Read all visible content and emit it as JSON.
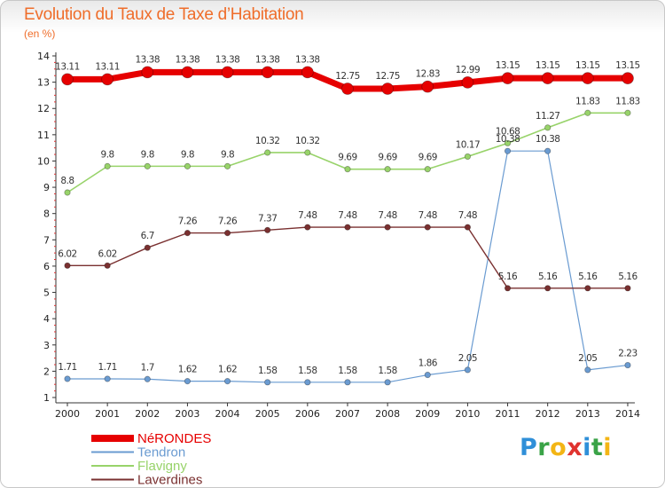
{
  "title": "Evolution du Taux de Taxe d’Habitation",
  "subtitle": "(en %)",
  "brand": {
    "letters": [
      {
        "char": "P",
        "color": "#2f8fd8"
      },
      {
        "char": "r",
        "color": "#3aa347"
      },
      {
        "char": "o",
        "color": "#f3b515"
      },
      {
        "char": "x",
        "color": "#e0332f"
      },
      {
        "char": "i",
        "color": "#2f8fd8"
      },
      {
        "char": "t",
        "color": "#3aa347"
      },
      {
        "char": "i",
        "color": "#f3b515"
      }
    ]
  },
  "chart_data": {
    "type": "line",
    "x": [
      "2000",
      "2001",
      "2002",
      "2003",
      "2004",
      "2005",
      "2006",
      "2007",
      "2008",
      "2009",
      "2010",
      "2011",
      "2012",
      "2013",
      "2014"
    ],
    "ylim": [
      1,
      14
    ],
    "yticks": [
      1,
      2,
      3,
      4,
      5,
      6,
      7,
      8,
      9,
      10,
      11,
      12,
      13,
      14
    ],
    "grid": false,
    "legend_position": "bottom-left",
    "series": [
      {
        "name": "NéRONDES",
        "color": "#e60000",
        "values": [
          13.11,
          13.11,
          13.38,
          13.38,
          13.38,
          13.38,
          13.38,
          12.75,
          12.75,
          12.83,
          12.99,
          13.15,
          13.15,
          13.15,
          13.15
        ],
        "labels": [
          "13.11",
          "13.11",
          "13.38",
          "13.38",
          "13.38",
          "13.38",
          "13.38",
          "12.75",
          "12.75",
          "12.83",
          "12.99",
          "13.15",
          "13.15",
          "13.15",
          "13.15"
        ]
      },
      {
        "name": "Tendron",
        "color": "#6a9bd1",
        "values": [
          1.71,
          1.71,
          1.7,
          1.62,
          1.62,
          1.58,
          1.58,
          1.58,
          1.58,
          1.86,
          2.05,
          10.38,
          10.38,
          2.05,
          2.23
        ],
        "labels": [
          "1.71",
          "1.71",
          "1.7",
          "1.62",
          "1.62",
          "1.58",
          "1.58",
          "1.58",
          "1.58",
          "1.86",
          "2.05",
          "10.38",
          "10.38",
          "2.05",
          "2.23"
        ]
      },
      {
        "name": "Flavigny",
        "color": "#98d36a",
        "values": [
          8.8,
          9.8,
          9.8,
          9.8,
          9.8,
          10.32,
          10.32,
          9.69,
          9.69,
          9.69,
          10.17,
          10.68,
          11.27,
          11.83,
          11.83
        ],
        "labels": [
          "8.8",
          "9.8",
          "9.8",
          "9.8",
          "9.8",
          "10.32",
          "10.32",
          "9.69",
          "9.69",
          "9.69",
          "10.17",
          "10.68",
          "11.27",
          "11.83",
          "11.83"
        ]
      },
      {
        "name": "Laverdines",
        "color": "#7a3030",
        "values": [
          6.02,
          6.02,
          6.7,
          7.26,
          7.26,
          7.37,
          7.48,
          7.48,
          7.48,
          7.48,
          7.48,
          5.16,
          5.16,
          5.16,
          5.16
        ],
        "labels": [
          "6.02",
          "6.02",
          "6.7",
          "7.26",
          "7.26",
          "7.37",
          "7.48",
          "7.48",
          "7.48",
          "7.48",
          "7.48",
          "5.16",
          "5.16",
          "5.16",
          "5.16"
        ]
      }
    ]
  }
}
